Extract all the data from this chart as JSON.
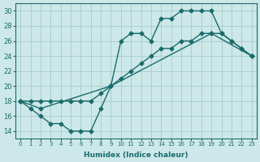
{
  "xlabel": "Humidex (Indice chaleur)",
  "bg_color": "#cde8e8",
  "line_color": "#1a6b6b",
  "grid_color": "#aacfcf",
  "xlim": [
    -0.5,
    23.5
  ],
  "ylim": [
    13,
    31
  ],
  "yticks": [
    14,
    16,
    18,
    20,
    22,
    24,
    26,
    28,
    30
  ],
  "xticks": [
    0,
    1,
    2,
    3,
    4,
    5,
    6,
    7,
    8,
    9,
    10,
    11,
    12,
    13,
    14,
    15,
    16,
    17,
    18,
    19,
    20,
    21,
    22,
    23
  ],
  "line1_x": [
    0,
    1,
    2,
    3,
    4,
    5,
    6,
    7,
    8,
    9,
    10,
    11,
    12,
    13,
    14,
    15,
    16,
    17,
    18,
    19,
    20,
    21,
    22,
    23
  ],
  "line1_y": [
    18,
    17,
    16,
    15,
    15,
    14,
    14,
    14,
    17,
    20,
    26,
    27,
    27,
    26,
    29,
    29,
    30,
    30,
    30,
    30,
    27,
    26,
    25,
    24
  ],
  "line2_x": [
    0,
    1,
    2,
    3,
    4,
    5,
    6,
    7,
    8,
    9,
    10,
    11,
    12,
    13,
    14,
    15,
    16,
    17,
    18,
    19,
    20,
    21,
    22,
    23
  ],
  "line2_y": [
    18,
    18,
    18,
    18,
    18,
    18,
    18,
    18,
    19,
    20,
    21,
    22,
    23,
    24,
    25,
    25,
    26,
    26,
    27,
    27,
    27,
    26,
    25,
    24
  ],
  "line3_x": [
    0,
    2,
    9,
    19,
    23
  ],
  "line3_y": [
    18,
    17,
    20,
    27,
    24
  ]
}
